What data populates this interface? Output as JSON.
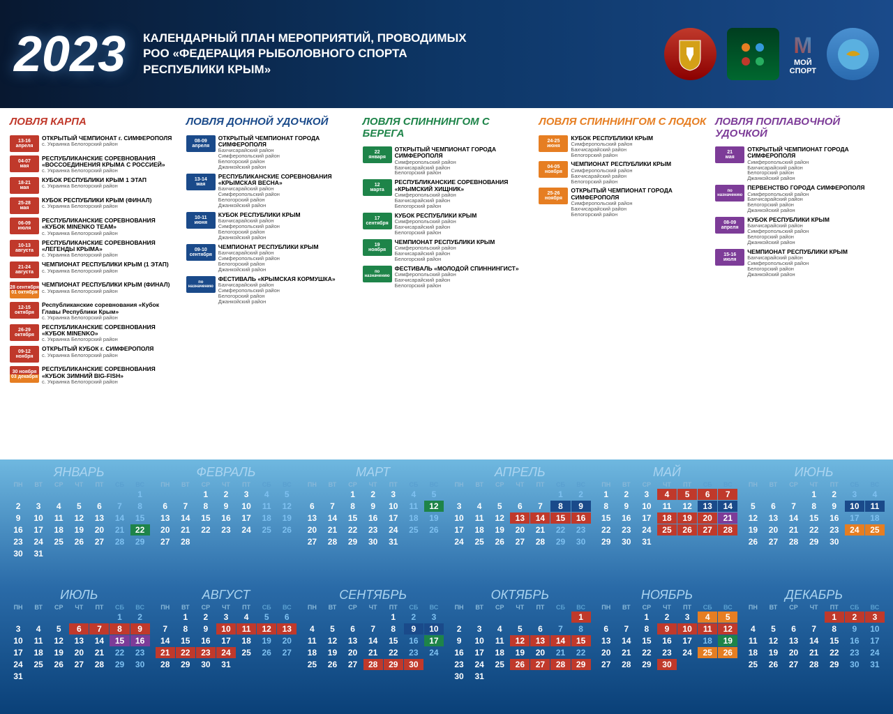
{
  "year": "2023",
  "title": [
    "КАЛЕНДАРНЫЙ ПЛАН МЕРОПРИЯТИЙ, ПРОВОДИМЫХ",
    "РОО «ФЕДЕРАЦИЯ РЫБОЛОВНОГО СПОРТА",
    "РЕСПУБЛИКИ КРЫМ»"
  ],
  "logo3_text": [
    "МОЙ",
    "СПОРТ"
  ],
  "colors": {
    "c1": "#c0392b",
    "c2": "#1a4a8a",
    "c3": "#1e8449",
    "c4": "#e67e22",
    "c5": "#7d3c98"
  },
  "columns": [
    {
      "cls": "c1",
      "title": "ЛОВЛЯ КАРПА",
      "events": [
        {
          "d": "13-16",
          "m": "апреля",
          "name": "ОТКРЫТЫЙ ЧЕМПИОНАТ г. СИМФЕРОПОЛЯ",
          "loc": "с. Украинка Белогорский район"
        },
        {
          "d": "04-07",
          "m": "мая",
          "name": "РЕСПУБЛИКАНСКИЕ СОРЕВНОВАНИЯ «ВОССОЕДИНЕНИЯ КРЫМА С РОССИЕЙ»",
          "loc": "с. Украинка Белогорский район"
        },
        {
          "d": "18-21",
          "m": "мая",
          "name": "КУБОК РЕСПУБЛИКИ КРЫМ 1 ЭТАП",
          "loc": "с. Украинка Белогорский район"
        },
        {
          "d": "25-28",
          "m": "мая",
          "name": "КУБОК РЕСПУБЛИКИ КРЫМ (ФИНАЛ)",
          "loc": "с. Украинка Белогорский район"
        },
        {
          "d": "06-09",
          "m": "июля",
          "name": "РЕСПУБЛИКАНСКИЕ СОРЕВНОВАНИЯ «КУБОК MINENKO TEAM»",
          "loc": "с. Украинка Белогорский район"
        },
        {
          "d": "10-13",
          "m": "августа",
          "name": "РЕСПУБЛИКАНСКИЕ СОРЕВНОВАНИЯ «ЛЕГЕНДЫ КРЫМА»",
          "loc": "с. Украинка Белогорский район"
        },
        {
          "d": "21-24",
          "m": "августа",
          "name": "ЧЕМПИОНАТ РЕСПУБЛИКИ КРЫМ (1 ЭТАП)",
          "loc": "с. Украинка Белогорский район"
        },
        {
          "d": "28 сентября",
          "m": "01 октября",
          "split": true,
          "name": "ЧЕМПИОНАТ РЕСПУБЛИКИ КРЫМ (ФИНАЛ)",
          "loc": "с. Украинка Белогорский район"
        },
        {
          "d": "12-15",
          "m": "октября",
          "name": "Республиканские соревнования «Кубок Главы Республики Крым»",
          "loc": "с. Украинка Белогорский район"
        },
        {
          "d": "26-29",
          "m": "октября",
          "name": "РЕСПУБЛИКАНСКИЕ СОРЕВНОВАНИЯ «КУБОК MINENKO»",
          "loc": "с. Украинка Белогорский район"
        },
        {
          "d": "09-12",
          "m": "ноября",
          "name": "ОТКРЫТЫЙ КУБОК г. СИМФЕРОПОЛЯ",
          "loc": "с. Украинка Белогорский район"
        },
        {
          "d": "30 ноября",
          "m": "03 декабря",
          "split": true,
          "name": "РЕСПУБЛИКАНСКИЕ СОРЕВНОВАНИЯ «КУБОК ЗИМНИЙ BIG-FISH»",
          "loc": "с. Украинка Белогорский район"
        }
      ]
    },
    {
      "cls": "c2",
      "title": "ЛОВЛЯ ДОННОЙ УДОЧКОЙ",
      "events": [
        {
          "d": "08-09",
          "m": "апреля",
          "name": "ОТКРЫТЫЙ ЧЕМПИОНАТ ГОРОДА СИМФЕРОПОЛЯ",
          "loc": "Бахчисарайский район\nСимферопольский район\nБелогорский район\nДжанкойский район"
        },
        {
          "d": "13-14",
          "m": "мая",
          "name": "РЕСПУБЛИКАНСКИЕ СОРЕВНОВАНИЯ «КРЫМСКАЯ ВЕСНА»",
          "loc": "Бахчисарайский район\nСимферопольский район\nБелогорский район\nДжанкойский район"
        },
        {
          "d": "10-11",
          "m": "июня",
          "name": "КУБОК РЕСПУБЛИКИ КРЫМ",
          "loc": "Бахчисарайский район\nСимферопольский район\nБелогорский район\nДжанкойский район"
        },
        {
          "d": "09-10",
          "m": "сентября",
          "name": "ЧЕМПИОНАТ РЕСПУБЛИКИ КРЫМ",
          "loc": "Бахчисарайский район\nСимферопольский район\nБелогорский район\nДжанкойский район"
        },
        {
          "d": "по",
          "m": "назначению",
          "tbd": true,
          "name": "ФЕСТИВАЛЬ «КРЫМСКАЯ КОРМУШКА»",
          "loc": "Бахчисарайский район\nСимферопольский район\nБелогорский район\nДжанкойский район"
        }
      ]
    },
    {
      "cls": "c3",
      "title": "ЛОВЛЯ СПИННИНГОМ С БЕРЕГА",
      "events": [
        {
          "d": "22",
          "m": "января",
          "name": "ОТКРЫТЫЙ ЧЕМПИОНАТ ГОРОДА СИМФЕРОПОЛЯ",
          "loc": "Симферопольский район\nБахчисарайский район\nБелогорский район"
        },
        {
          "d": "12",
          "m": "марта",
          "name": "РЕСПУБЛИКАНСКИЕ СОРЕВНОВАНИЯ «КРЫМСКИЙ ХИЩНИК»",
          "loc": "Симферопольский район\nБахчисарайский район\nБелогорский район"
        },
        {
          "d": "17",
          "m": "сентября",
          "name": "КУБОК РЕСПУБЛИКИ КРЫМ",
          "loc": "Симферопольский район\nБахчисарайский район\nБелогорский район"
        },
        {
          "d": "19",
          "m": "ноября",
          "name": "ЧЕМПИОНАТ РЕСПУБЛИКИ КРЫМ",
          "loc": "Симферопольский район\nБахчисарайский район\nБелогорский район"
        },
        {
          "d": "по",
          "m": "назначению",
          "tbd": true,
          "name": "ФЕСТИВАЛЬ «МОЛОДОЙ СПИННИНГИСТ»",
          "loc": "Симферопольский район\nБахчисарайский район\nБелогорский район"
        }
      ]
    },
    {
      "cls": "c4",
      "title": "ЛОВЛЯ СПИННИНГОМ С ЛОДОК",
      "events": [
        {
          "d": "24-25",
          "m": "июня",
          "name": "КУБОК РЕСПУБЛИКИ КРЫМ",
          "loc": "Симферопольский район\nБахчисарайский район\nБелогорский район"
        },
        {
          "d": "04-05",
          "m": "ноября",
          "name": "ЧЕМПИОНАТ РЕСПУБЛИКИ КРЫМ",
          "loc": "Симферопольский район\nБахчисарайский район\nБелогорский район"
        },
        {
          "d": "25-26",
          "m": "ноября",
          "name": "ОТКРЫТЫЙ ЧЕМПИОНАТ ГОРОДА СИМФЕРОПОЛЯ",
          "loc": "Симферопольский район\nБахчисарайский район\nБелогорский район"
        }
      ]
    },
    {
      "cls": "c5",
      "title": "ЛОВЛЯ ПОПЛАВОЧНОЙ УДОЧКОЙ",
      "events": [
        {
          "d": "21",
          "m": "мая",
          "name": "ОТКРЫТЫЙ ЧЕМПИОНАТ ГОРОДА СИМФЕРОПОЛЯ",
          "loc": "Симферопольский район\nБахчисарайский район\nБелогорский район\nДжанкойский район"
        },
        {
          "d": "по",
          "m": "назначению",
          "tbd": true,
          "name": "ПЕРВЕНСТВО ГОРОДА СИМФЕРОПОЛЯ",
          "loc": "Симферопольский район\nБахчисарайский район\nБелогорский район\nДжанкойский район"
        },
        {
          "d": "08-09",
          "m": "апреля",
          "name": "КУБОК РЕСПУБЛИКИ КРЫМ",
          "loc": "Бахчисарайский район\nСимферопольский район\nБелогорский район\nДжанкойский район"
        },
        {
          "d": "15-16",
          "m": "июля",
          "name": "ЧЕМПИОНАТ РЕСПУБЛИКИ КРЫМ",
          "loc": "Бахчисарайский район\nСимферопольский район\nБелогорский район\nДжанкойский район"
        }
      ]
    }
  ],
  "months": [
    {
      "name": "ЯНВАРЬ",
      "start": 7,
      "days": 31,
      "hl": {
        "22": "g"
      }
    },
    {
      "name": "ФЕВРАЛЬ",
      "start": 3,
      "days": 28,
      "hl": {}
    },
    {
      "name": "МАРТ",
      "start": 3,
      "days": 31,
      "hl": {
        "12": "g"
      }
    },
    {
      "name": "АПРЕЛЬ",
      "start": 6,
      "days": 30,
      "hl": {
        "8": "b",
        "9": "b",
        "13": "r",
        "14": "r",
        "15": "r",
        "16": "r"
      }
    },
    {
      "name": "МАЙ",
      "start": 1,
      "days": 31,
      "hl": {
        "4": "r",
        "5": "r",
        "6": "r",
        "7": "r",
        "13": "b",
        "14": "b",
        "18": "r",
        "19": "r",
        "20": "r",
        "21": "p",
        "25": "r",
        "26": "r",
        "27": "r",
        "28": "r"
      }
    },
    {
      "name": "ИЮНЬ",
      "start": 4,
      "days": 30,
      "hl": {
        "10": "b",
        "11": "b",
        "24": "o",
        "25": "o"
      }
    },
    {
      "name": "ИЮЛЬ",
      "start": 6,
      "days": 31,
      "hl": {
        "6": "r",
        "7": "r",
        "8": "r",
        "9": "r",
        "15": "p",
        "16": "p"
      }
    },
    {
      "name": "АВГУСТ",
      "start": 2,
      "days": 31,
      "hl": {
        "10": "r",
        "11": "r",
        "12": "r",
        "13": "r",
        "21": "r",
        "22": "r",
        "23": "r",
        "24": "r"
      }
    },
    {
      "name": "СЕНТЯБРЬ",
      "start": 5,
      "days": 30,
      "hl": {
        "9": "b",
        "10": "b",
        "17": "g",
        "28": "r",
        "29": "r",
        "30": "r"
      }
    },
    {
      "name": "ОКТЯБРЬ",
      "start": 7,
      "days": 31,
      "hl": {
        "1": "r",
        "12": "r",
        "13": "r",
        "14": "r",
        "15": "r",
        "26": "r",
        "27": "r",
        "28": "r",
        "29": "r"
      }
    },
    {
      "name": "НОЯБРЬ",
      "start": 3,
      "days": 30,
      "hl": {
        "4": "o",
        "5": "o",
        "9": "r",
        "10": "r",
        "11": "r",
        "12": "r",
        "19": "g",
        "25": "o",
        "26": "o",
        "30": "r"
      }
    },
    {
      "name": "ДЕКАБРЬ",
      "start": 5,
      "days": 31,
      "hl": {
        "1": "r",
        "2": "r",
        "3": "r"
      }
    }
  ],
  "dow": [
    "ПН",
    "ВТ",
    "СР",
    "ЧТ",
    "ПТ",
    "СБ",
    "ВС"
  ]
}
